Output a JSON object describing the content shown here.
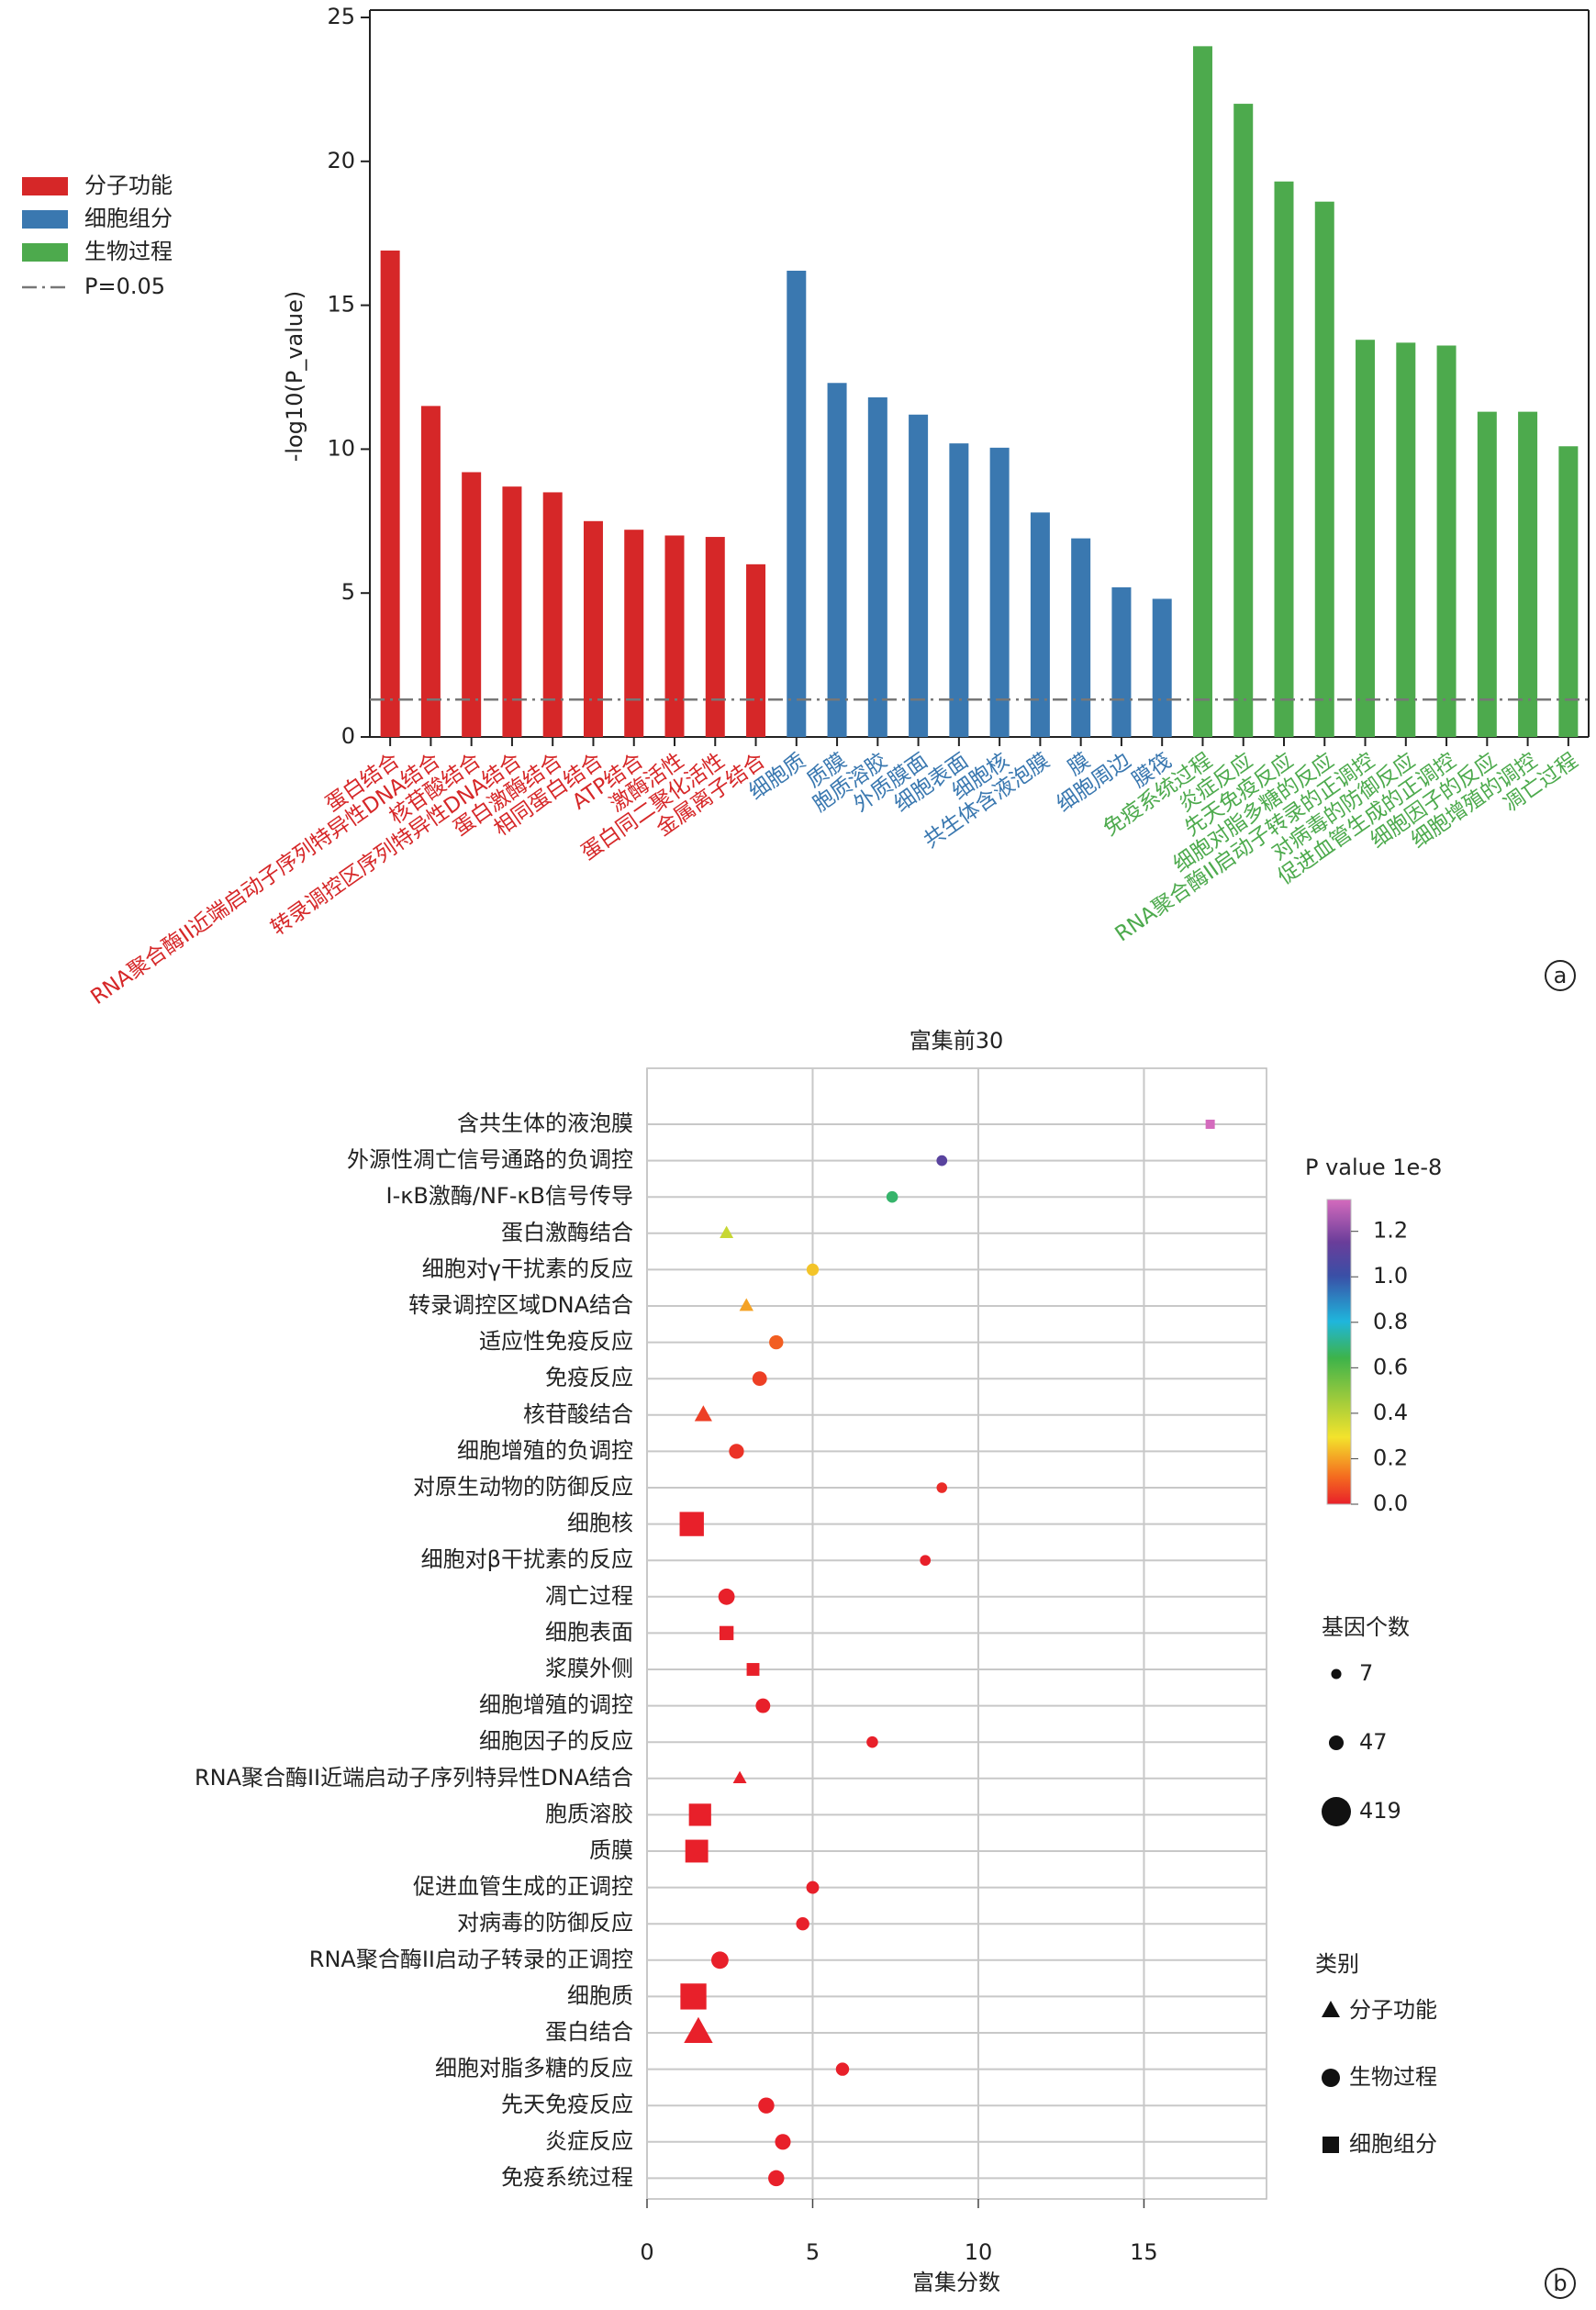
{
  "chart_data": [
    {
      "type": "bar",
      "ylabel": "-log10(P_value)",
      "categories": [
        "蛋白结合",
        "RNA聚合酶II近端启动子序列特异性DNA结合",
        "核苷酸结合",
        "转录调控区序列特异性DNA结合",
        "蛋白激酶结合",
        "相同蛋白结合",
        "ATP结合",
        "激酶活性",
        "蛋白同二聚化活性",
        "金属离子结合",
        "细胞质",
        "质膜",
        "胞质溶胶",
        "外质膜面",
        "细胞表面",
        "细胞核",
        "共生体含液泡膜",
        "膜",
        "细胞周边",
        "膜筏",
        "免疫系统过程",
        "炎症反应",
        "先天免疫反应",
        "细胞对脂多糖的反应",
        "RNA聚合酶II启动子转录的正调控",
        "对病毒的防御反应",
        "促进血管生成的正调控",
        "细胞因子的反应",
        "细胞增殖的调控",
        "凋亡过程"
      ],
      "series": [
        {
          "name": "分子功能",
          "color": "#d62728",
          "values": [
            16.9,
            11.5,
            9.2,
            8.7,
            8.5,
            7.5,
            7.2,
            7.0,
            6.95,
            6.0,
            null,
            null,
            null,
            null,
            null,
            null,
            null,
            null,
            null,
            null,
            null,
            null,
            null,
            null,
            null,
            null,
            null,
            null,
            null,
            null
          ]
        },
        {
          "name": "细胞组分",
          "color": "#3a78b0",
          "values": [
            null,
            null,
            null,
            null,
            null,
            null,
            null,
            null,
            null,
            null,
            16.2,
            12.3,
            11.8,
            11.2,
            10.2,
            10.05,
            7.8,
            6.9,
            5.2,
            4.8,
            null,
            null,
            null,
            null,
            null,
            null,
            null,
            null,
            null,
            null
          ]
        },
        {
          "name": "生物过程",
          "color": "#4daa4d",
          "values": [
            null,
            null,
            null,
            null,
            null,
            null,
            null,
            null,
            null,
            null,
            null,
            null,
            null,
            null,
            null,
            null,
            null,
            null,
            null,
            null,
            24.0,
            22.0,
            19.3,
            18.6,
            13.8,
            13.7,
            13.6,
            11.3,
            11.3,
            10.1
          ]
        }
      ],
      "ylim": [
        0,
        25
      ],
      "yticks": [
        0,
        5,
        10,
        15,
        20,
        25
      ],
      "threshold": {
        "value": 1.301,
        "label": "P=0.05",
        "color": "#777777"
      },
      "legend": "left",
      "panel_label": "a"
    },
    {
      "type": "scatter",
      "title": "富集前30",
      "xlabel": "富集分数",
      "categories": [
        "含共生体的液泡膜",
        "外源性凋亡信号通路的负调控",
        "I-κB激酶/NF-κB信号传导",
        "蛋白激酶结合",
        "细胞对γ干扰素的反应",
        "转录调控区域DNA结合",
        "适应性免疫反应",
        "免疫反应",
        "核苷酸结合",
        "细胞增殖的负调控",
        "对原生动物的防御反应",
        "细胞核",
        "细胞对β干扰素的反应",
        "凋亡过程",
        "细胞表面",
        "浆膜外侧",
        "细胞增殖的调控",
        "细胞因子的反应",
        "RNA聚合酶II近端启动子序列特异性DNA结合",
        "胞质溶胶",
        "质膜",
        "促进血管生成的正调控",
        "对病毒的防御反应",
        "RNA聚合酶II启动子转录的正调控",
        "细胞质",
        "蛋白结合",
        "细胞对脂多糖的反应",
        "先天免疫反应",
        "炎症反应",
        "免疫系统过程"
      ],
      "values": [
        17.0,
        8.9,
        7.4,
        2.4,
        5.0,
        3.0,
        3.9,
        3.4,
        1.7,
        2.7,
        8.9,
        1.35,
        8.4,
        2.4,
        2.4,
        3.2,
        3.5,
        6.8,
        2.8,
        1.6,
        1.5,
        5.0,
        4.7,
        2.2,
        1.4,
        1.55,
        5.9,
        3.6,
        4.1,
        3.9
      ],
      "p_values": [
        1.34,
        1.1,
        0.68,
        0.38,
        0.25,
        0.2,
        0.1,
        0.05,
        0.05,
        0.03,
        0.02,
        0,
        0,
        0,
        0,
        0,
        0,
        0,
        0,
        0,
        0,
        0,
        0,
        0,
        0,
        0,
        0,
        0,
        0,
        0
      ],
      "counts": [
        7,
        10,
        15,
        35,
        20,
        40,
        40,
        45,
        90,
        50,
        9,
        330,
        10,
        70,
        60,
        40,
        45,
        15,
        35,
        260,
        280,
        25,
        30,
        85,
        400,
        400,
        30,
        65,
        60,
        65
      ],
      "groups": [
        2,
        1,
        1,
        0,
        1,
        0,
        1,
        1,
        0,
        1,
        1,
        2,
        1,
        1,
        2,
        2,
        1,
        1,
        0,
        2,
        2,
        1,
        1,
        1,
        2,
        0,
        1,
        1,
        1,
        1
      ],
      "xlim": [
        0,
        18.7
      ],
      "xticks": [
        0,
        5,
        10,
        15
      ],
      "grid": true,
      "colorbar": {
        "title": "P value 1e-8",
        "lim": [
          0,
          1.34
        ],
        "ticks": [
          {
            "value": 0,
            "label": "0.0"
          },
          0.2,
          0.4,
          0.6,
          0.8,
          {
            "value": 1,
            "label": "1.0"
          },
          1.2
        ]
      },
      "size_legend": {
        "title": "基因个数",
        "values": [
          7,
          47,
          419
        ]
      },
      "shape_legend": {
        "title": "类别",
        "items": [
          {
            "name": "分子功能",
            "shape": "triangle"
          },
          {
            "name": "生物过程",
            "shape": "circle"
          },
          {
            "name": "细胞组分",
            "shape": "square"
          }
        ]
      },
      "panel_label": "b"
    }
  ]
}
